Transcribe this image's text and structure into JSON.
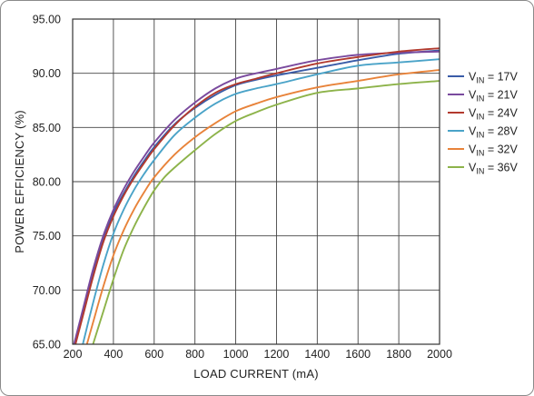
{
  "chart_data": {
    "type": "line",
    "title": "",
    "xlabel": "LOAD CURRENT (mA)",
    "ylabel": "POWER EFFICIENCY (%)",
    "xlim": [
      200,
      2000
    ],
    "ylim": [
      65,
      95
    ],
    "x_ticks": [
      "200",
      "400",
      "600",
      "800",
      "1000",
      "1200",
      "1400",
      "1600",
      "1800",
      "2000"
    ],
    "y_ticks": [
      "65.00",
      "70.00",
      "75.00",
      "80.00",
      "85.00",
      "90.00",
      "95.00"
    ],
    "grid": true,
    "legend_position": "right",
    "series": [
      {
        "name": "= 17V",
        "label_main": "V",
        "label_sub": "IN",
        "label_rest": " = 17V",
        "color": "#3a5ca8",
        "x": [
          200,
          250,
          300,
          350,
          400,
          450,
          500,
          550,
          600,
          700,
          800,
          900,
          1000,
          1100,
          1200,
          1400,
          1600,
          1800,
          2000
        ],
        "y": [
          64.5,
          68.0,
          71.6,
          74.8,
          77.1,
          78.9,
          80.5,
          81.9,
          83.2,
          85.3,
          86.8,
          88.0,
          88.9,
          89.4,
          89.8,
          90.5,
          91.2,
          91.8,
          92.1
        ]
      },
      {
        "name": "= 21V",
        "label_main": "V",
        "label_sub": "IN",
        "label_rest": " = 21V",
        "color": "#7a4a9e",
        "x": [
          200,
          250,
          300,
          350,
          400,
          450,
          500,
          550,
          600,
          700,
          800,
          900,
          1000,
          1100,
          1200,
          1400,
          1600,
          1800,
          2000
        ],
        "y": [
          64.5,
          68.2,
          71.9,
          75.0,
          77.4,
          79.3,
          80.9,
          82.3,
          83.6,
          85.7,
          87.3,
          88.6,
          89.5,
          90.0,
          90.4,
          91.2,
          91.7,
          91.9,
          92.0
        ]
      },
      {
        "name": "= 24V",
        "label_main": "V",
        "label_sub": "IN",
        "label_rest": " = 24V",
        "color": "#b23a2e",
        "x": [
          200,
          250,
          300,
          350,
          400,
          450,
          500,
          550,
          600,
          700,
          800,
          900,
          1000,
          1100,
          1200,
          1400,
          1600,
          1800,
          2000
        ],
        "y": [
          64.0,
          67.6,
          71.2,
          74.4,
          76.8,
          78.7,
          80.3,
          81.7,
          83.0,
          85.2,
          86.9,
          88.2,
          89.0,
          89.5,
          90.0,
          90.9,
          91.5,
          92.0,
          92.3
        ]
      },
      {
        "name": "= 28V",
        "label_main": "V",
        "label_sub": "IN",
        "label_rest": " = 28V",
        "color": "#4aa3c8",
        "x": [
          250,
          300,
          350,
          400,
          450,
          500,
          550,
          600,
          700,
          800,
          900,
          1000,
          1100,
          1200,
          1400,
          1600,
          1800,
          2000
        ],
        "y": [
          65.0,
          68.8,
          72.3,
          75.2,
          77.4,
          79.2,
          80.7,
          82.0,
          84.3,
          85.9,
          87.2,
          88.1,
          88.6,
          89.0,
          89.9,
          90.7,
          91.0,
          91.3
        ]
      },
      {
        "name": "= 32V",
        "label_main": "V",
        "label_sub": "IN",
        "label_rest": " = 32V",
        "color": "#e8833a",
        "x": [
          270,
          300,
          350,
          400,
          450,
          500,
          550,
          600,
          700,
          800,
          900,
          1000,
          1100,
          1200,
          1400,
          1600,
          1800,
          2000
        ],
        "y": [
          65.0,
          67.0,
          70.3,
          73.2,
          75.5,
          77.4,
          79.0,
          80.4,
          82.5,
          84.1,
          85.4,
          86.5,
          87.2,
          87.8,
          88.7,
          89.3,
          89.9,
          90.3
        ]
      },
      {
        "name": "= 36V",
        "label_main": "V",
        "label_sub": "IN",
        "label_rest": " = 36V",
        "color": "#8db34a",
        "x": [
          300,
          350,
          400,
          450,
          500,
          550,
          600,
          650,
          700,
          800,
          900,
          1000,
          1100,
          1200,
          1400,
          1600,
          1800,
          2000
        ],
        "y": [
          65.0,
          68.0,
          71.0,
          73.7,
          75.8,
          77.6,
          79.2,
          80.4,
          81.3,
          82.9,
          84.4,
          85.6,
          86.4,
          87.1,
          88.2,
          88.6,
          89.0,
          89.3
        ]
      }
    ]
  }
}
